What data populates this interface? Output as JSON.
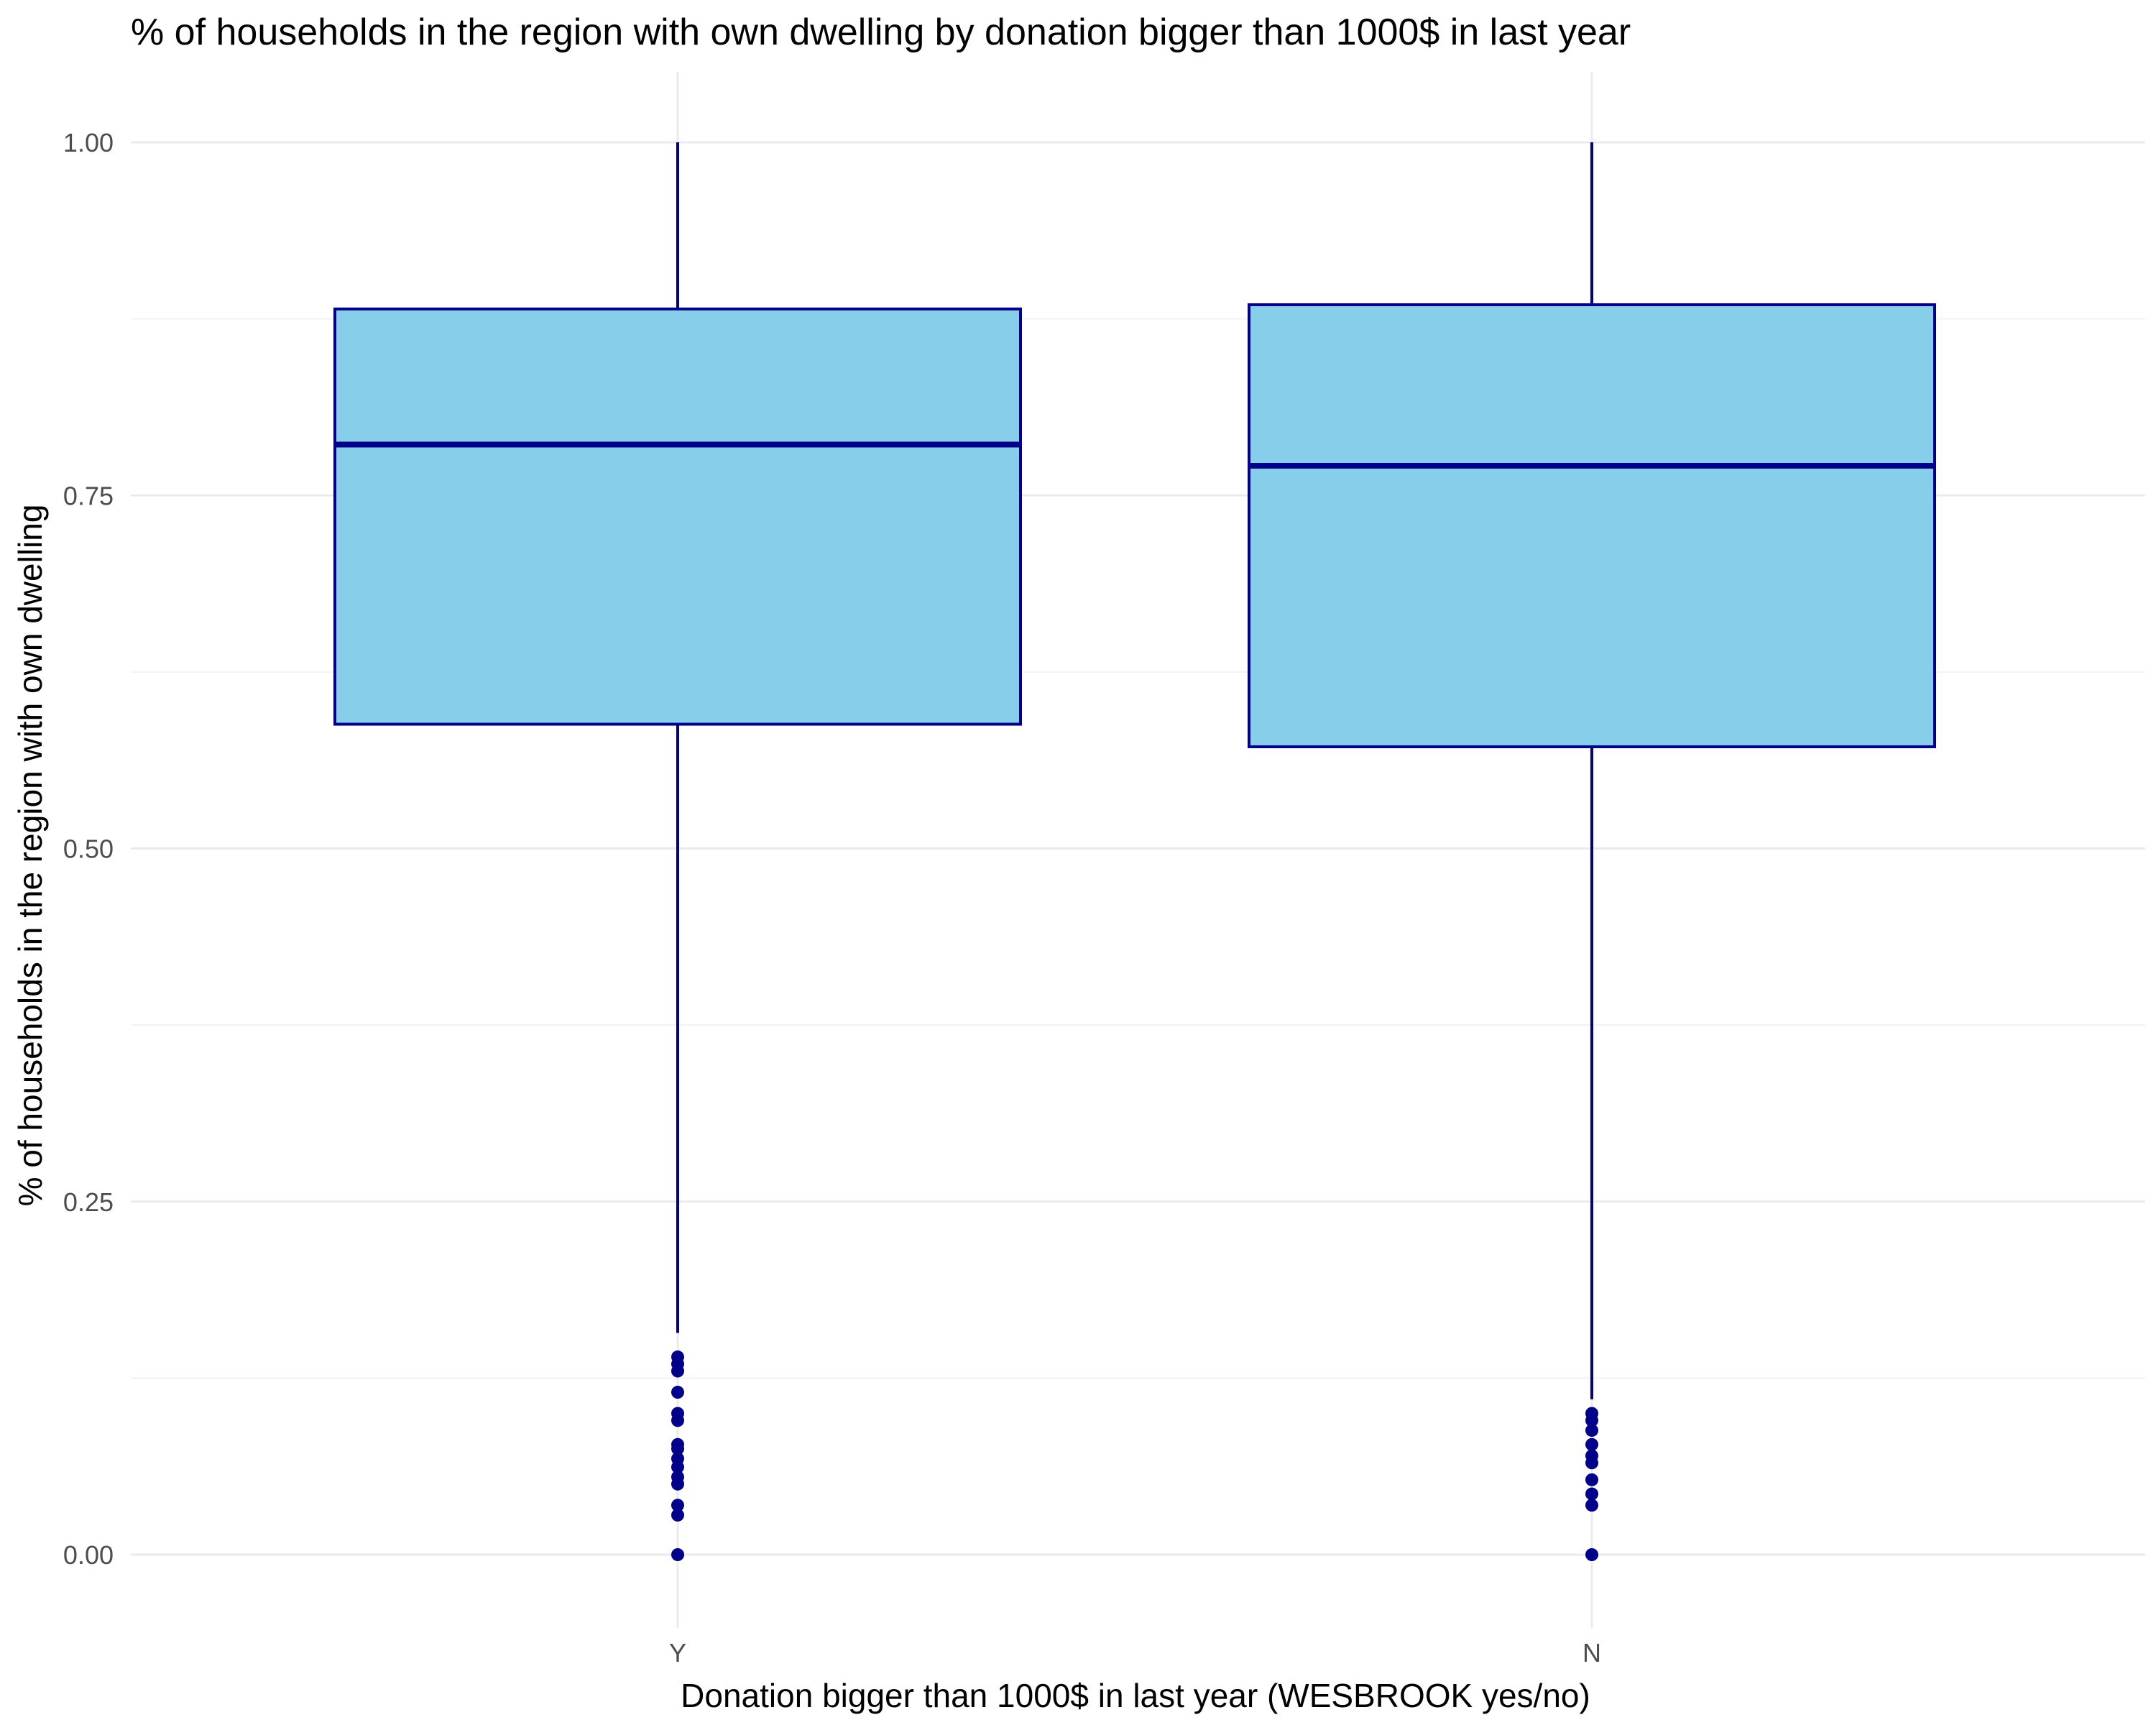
{
  "chart_data": {
    "type": "box",
    "title": "% of households in the region with own dwelling by donation bigger than 1000$ in last year",
    "xlabel": "Donation bigger than 1000$ in last year (WESBROOK yes/no)",
    "ylabel": "% of households in the region with own dwelling",
    "categories": [
      "Y",
      "N"
    ],
    "ylim": [
      -0.1,
      1.1
    ],
    "yticks": [
      0.0,
      0.25,
      0.5,
      0.75,
      1.0
    ],
    "ytick_labels": [
      "0.00",
      "0.25",
      "0.50",
      "0.75",
      "1.00"
    ],
    "grid": true,
    "legend": "none",
    "colors": {
      "fill": "#87CEEB",
      "stroke": "#00008B",
      "outlier": "#00008B",
      "grid": "#ebebeb"
    },
    "boxes": [
      {
        "category": "Y",
        "whisker_low": 0.157,
        "q1": 0.588,
        "median": 0.786,
        "q3": 0.882,
        "whisker_high": 1.0,
        "outliers": [
          0.14,
          0.135,
          0.13,
          0.115,
          0.1,
          0.095,
          0.078,
          0.075,
          0.068,
          0.062,
          0.055,
          0.05,
          0.035,
          0.028,
          0.0
        ]
      },
      {
        "category": "N",
        "whisker_low": 0.11,
        "q1": 0.572,
        "median": 0.771,
        "q3": 0.885,
        "whisker_high": 1.0,
        "outliers": [
          0.1,
          0.095,
          0.088,
          0.078,
          0.07,
          0.065,
          0.053,
          0.043,
          0.035,
          0.0
        ]
      }
    ]
  }
}
